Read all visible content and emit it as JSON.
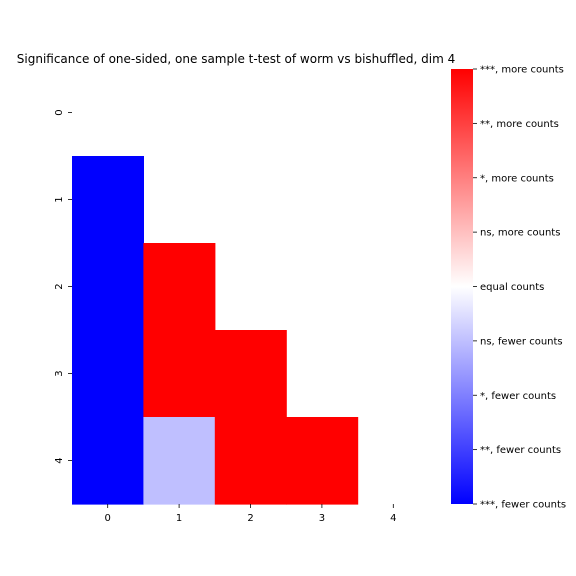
{
  "chart_data": {
    "type": "heatmap",
    "title": "Significance of one-sided, one sample t-test of worm vs bishuffled, dim 4",
    "x_categories": [
      "0",
      "1",
      "2",
      "3",
      "4"
    ],
    "y_categories": [
      "0",
      "1",
      "2",
      "3",
      "4"
    ],
    "values": [
      [
        null,
        null,
        null,
        null,
        null
      ],
      [
        -4,
        null,
        null,
        null,
        null
      ],
      [
        -4,
        4,
        null,
        null,
        null
      ],
      [
        -4,
        4,
        4,
        null,
        null
      ],
      [
        -4,
        -1,
        4,
        4,
        null
      ]
    ],
    "value_range": [
      -4,
      4
    ],
    "colormap": {
      "low": "#0000ff",
      "mid": "#ffffff",
      "high": "#ff0000"
    },
    "colorbar": {
      "ticks": [
        {
          "value": 4,
          "label": "***, more counts"
        },
        {
          "value": 3,
          "label": "**, more counts"
        },
        {
          "value": 2,
          "label": "*, more counts"
        },
        {
          "value": 1,
          "label": "ns, more counts"
        },
        {
          "value": 0,
          "label": "equal counts"
        },
        {
          "value": -1,
          "label": "ns, fewer counts"
        },
        {
          "value": -2,
          "label": "*, fewer counts"
        },
        {
          "value": -3,
          "label": "**, fewer counts"
        },
        {
          "value": -4,
          "label": "***, fewer counts"
        }
      ]
    }
  }
}
